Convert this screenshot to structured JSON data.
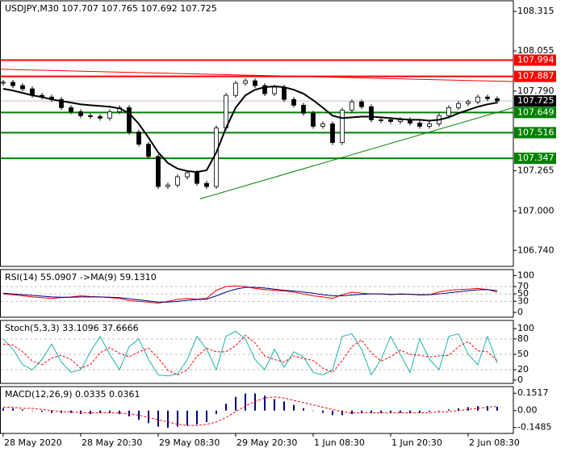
{
  "chart_data": [
    {
      "type": "candlestick",
      "title": "USDJPY,M30  107.707 107.765 107.692 107.725",
      "x": [
        0,
        3,
        6,
        9,
        12,
        15,
        18,
        21,
        24,
        27,
        30,
        33,
        36,
        39,
        42,
        45,
        48,
        51,
        54,
        57,
        60,
        63,
        66,
        69,
        72,
        75,
        78,
        81,
        84,
        87,
        90,
        93,
        96,
        99,
        102,
        105,
        108,
        111,
        114,
        117,
        120,
        123,
        126,
        129,
        132,
        135,
        138,
        141,
        144,
        147,
        150,
        153
      ],
      "close": [
        107.848,
        107.826,
        107.805,
        107.762,
        107.751,
        107.735,
        107.681,
        107.654,
        107.628,
        107.622,
        107.612,
        107.654,
        107.681,
        107.52,
        107.44,
        107.359,
        107.161,
        107.171,
        107.225,
        107.252,
        107.182,
        107.161,
        107.547,
        107.762,
        107.842,
        107.858,
        107.826,
        107.773,
        107.816,
        107.735,
        107.697,
        107.644,
        107.558,
        107.574,
        107.451,
        107.665,
        107.719,
        107.687,
        107.601,
        107.601,
        107.59,
        107.601,
        107.579,
        107.558,
        107.574,
        107.628,
        107.681,
        107.708,
        107.719,
        107.751,
        107.74,
        107.725
      ],
      "ma": [
        107.805,
        107.794,
        107.778,
        107.762,
        107.751,
        107.735,
        107.724,
        107.714,
        107.703,
        107.697,
        107.692,
        107.687,
        107.676,
        107.644,
        107.574,
        107.483,
        107.386,
        107.316,
        107.279,
        107.263,
        107.257,
        107.268,
        107.386,
        107.547,
        107.681,
        107.762,
        107.799,
        107.816,
        107.821,
        107.816,
        107.799,
        107.773,
        107.73,
        107.681,
        107.628,
        107.612,
        107.617,
        107.622,
        107.622,
        107.617,
        107.612,
        107.606,
        107.601,
        107.601,
        107.595,
        107.601,
        107.617,
        107.644,
        107.665,
        107.687,
        107.703,
        107.714
      ],
      "ma_color": "#000000",
      "up_color": "#ffffff",
      "down_color": "#000000",
      "levels": [
        {
          "value": 107.994,
          "color": "#ff0000"
        },
        {
          "value": 107.887,
          "color": "#ff0000"
        },
        {
          "value": 107.649,
          "color": "#008000"
        },
        {
          "value": 107.516,
          "color": "#008000"
        },
        {
          "value": 107.347,
          "color": "#008000"
        }
      ],
      "trendlines": [
        {
          "x": [
            -1,
            158
          ],
          "y": [
            107.934,
            107.853
          ],
          "color": "#ff0000"
        },
        {
          "x": [
            61,
            158
          ],
          "y": [
            107.08,
            107.681
          ],
          "color": "#008000"
        }
      ],
      "current": 107.725,
      "ylim": [
        106.635,
        108.385
      ],
      "yticks": [
        108.315,
        108.055,
        {
          "value": 107.79,
          "label": "107.790"
        },
        107.265,
        {
          "value": 107,
          "label": "107.000"
        },
        {
          "value": 106.74,
          "label": "106.740"
        }
      ],
      "xticks": [
        {
          "value": 0,
          "label": "28 May 2020"
        },
        {
          "value": 24,
          "label": "28 May 20:30"
        },
        {
          "value": 48,
          "label": "29 May 08:30"
        },
        {
          "value": 72,
          "label": "29 May 20:30"
        },
        {
          "value": 96,
          "label": "1 Jun 08:30"
        },
        {
          "value": 120,
          "label": "1 Jun 20:30"
        },
        {
          "value": 144,
          "label": "2 Jun 08:30"
        }
      ]
    },
    {
      "type": "line",
      "title": "RSI(14) 55.0907 ->MA(9) 59.1310",
      "lines": [
        {
          "values": [
            50,
            48,
            45,
            42,
            40,
            38,
            40,
            42,
            45,
            43,
            42,
            40,
            38,
            32,
            30,
            28,
            25,
            30,
            35,
            38,
            36,
            38,
            60,
            70,
            72,
            70,
            65,
            62,
            60,
            58,
            55,
            50,
            45,
            42,
            38,
            48,
            55,
            52,
            50,
            50,
            48,
            50,
            49,
            47,
            48,
            55,
            60,
            62,
            63,
            65,
            62,
            55
          ],
          "color": "#ff0000",
          "dash": false
        },
        {
          "values": [
            52,
            50,
            48,
            46,
            44,
            42,
            41,
            41,
            42,
            42,
            42,
            41,
            40,
            37,
            34,
            31,
            28,
            28,
            30,
            33,
            35,
            36,
            45,
            55,
            63,
            68,
            68,
            66,
            63,
            60,
            58,
            55,
            52,
            48,
            45,
            45,
            47,
            49,
            50,
            50,
            49,
            49,
            49,
            48,
            48,
            50,
            53,
            56,
            59,
            61,
            62,
            59
          ],
          "color": "#000080",
          "dash": false
        }
      ],
      "ylim": [
        -13,
        116
      ],
      "yticks": [
        100,
        70,
        50,
        30,
        0
      ],
      "levels": [
        70,
        50,
        30
      ]
    },
    {
      "type": "line",
      "title": "Stoch(5,3,3) 33.1096 37.6666",
      "lines": [
        {
          "values": [
            80,
            60,
            30,
            20,
            40,
            70,
            35,
            15,
            20,
            55,
            85,
            50,
            20,
            65,
            80,
            40,
            10,
            8,
            12,
            40,
            85,
            60,
            20,
            85,
            95,
            80,
            40,
            20,
            60,
            25,
            55,
            45,
            15,
            10,
            20,
            85,
            90,
            60,
            10,
            40,
            85,
            50,
            15,
            80,
            40,
            20,
            85,
            90,
            50,
            30,
            85,
            33.11
          ],
          "color": "#20b2aa",
          "dash": false
        },
        {
          "values": [
            70,
            68,
            55,
            37,
            30,
            43,
            48,
            40,
            23,
            30,
            53,
            63,
            52,
            45,
            55,
            62,
            43,
            19,
            10,
            20,
            46,
            62,
            55,
            55,
            67,
            87,
            72,
            47,
            40,
            35,
            47,
            42,
            38,
            23,
            15,
            38,
            65,
            78,
            53,
            37,
            45,
            58,
            50,
            48,
            45,
            47,
            48,
            65,
            75,
            57,
            55,
            37.67
          ],
          "color": "#ff0000",
          "dash": true
        }
      ],
      "ylim": [
        -6.5,
        116
      ],
      "yticks": [
        100,
        80,
        50,
        20,
        0
      ],
      "levels": [
        80,
        50,
        20
      ]
    },
    {
      "type": "macd",
      "title": "MACD(12,26,9) 0.0335 0.0361",
      "histogram": [
        0.02,
        0.02,
        0.01,
        0,
        -0.01,
        -0.02,
        -0.02,
        -0.02,
        -0.03,
        -0.03,
        -0.02,
        -0.02,
        -0.03,
        -0.05,
        -0.08,
        -0.11,
        -0.14,
        -0.15,
        -0.14,
        -0.13,
        -0.12,
        -0.1,
        -0.03,
        0.06,
        0.12,
        0.15,
        0.15,
        0.13,
        0.1,
        0.08,
        0.05,
        0.02,
        0,
        -0.02,
        -0.04,
        -0.04,
        -0.03,
        -0.02,
        -0.02,
        -0.02,
        -0.02,
        -0.02,
        -0.02,
        -0.02,
        -0.01,
        0,
        0.01,
        0.02,
        0.03,
        0.04,
        0.04,
        0.0335
      ],
      "hist_color": "#000080",
      "lines": [
        {
          "values": [
            0.03,
            0.03,
            0.02,
            0.02,
            0.01,
            0,
            -0.01,
            -0.01,
            -0.02,
            -0.02,
            -0.02,
            -0.02,
            -0.02,
            -0.03,
            -0.04,
            -0.06,
            -0.08,
            -0.1,
            -0.12,
            -0.13,
            -0.13,
            -0.12,
            -0.1,
            -0.06,
            -0.01,
            0.04,
            0.08,
            0.11,
            0.12,
            0.11,
            0.09,
            0.07,
            0.05,
            0.03,
            0.01,
            -0.01,
            -0.02,
            -0.02,
            -0.02,
            -0.02,
            -0.02,
            -0.02,
            -0.02,
            -0.02,
            -0.02,
            -0.01,
            -0.01,
            0,
            0.01,
            0.02,
            0.03,
            0.0361
          ],
          "color": "#ff0000",
          "dash": true
        }
      ],
      "ylim": [
        -0.2,
        0.21
      ],
      "yticks": [
        0.1517,
        {
          "value": 0,
          "label": "0.00"
        },
        -0.1485
      ],
      "levels": []
    }
  ]
}
